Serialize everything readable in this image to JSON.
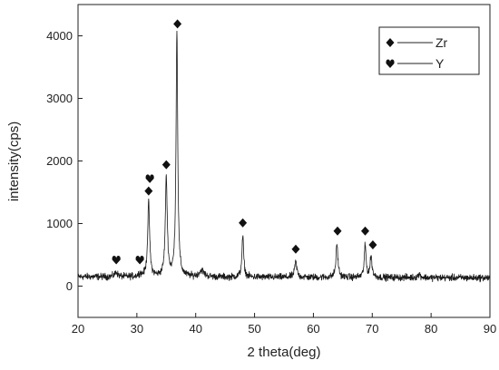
{
  "chart_data": {
    "type": "line",
    "xlabel": "2 theta(deg)",
    "ylabel": "intensity(cps)",
    "xlim": [
      20,
      90
    ],
    "ylim": [
      -500,
      4500
    ],
    "x_ticks": [
      20,
      30,
      40,
      50,
      60,
      70,
      80,
      90
    ],
    "y_ticks": [
      0,
      1000,
      2000,
      3000,
      4000
    ],
    "grid": false,
    "legend_position": "top-right",
    "legend": [
      {
        "marker": "diamond",
        "label": "Zr"
      },
      {
        "marker": "heart",
        "label": "Y"
      }
    ],
    "baseline": 150,
    "noise_amplitude": 70,
    "series": [
      {
        "x": [
          20,
          26.5,
          30.5,
          32.0,
          35.0,
          36.8,
          41.0,
          48.0,
          57.0,
          64.0,
          68.8,
          69.8,
          78.0,
          90
        ],
        "values": [
          180,
          210,
          170,
          1330,
          1720,
          4080,
          230,
          800,
          400,
          680,
          660,
          480,
          200,
          150
        ]
      }
    ],
    "peaks": [
      {
        "x": 26.5,
        "height": 70,
        "width": 0.3
      },
      {
        "x": 30.5,
        "height": 40,
        "width": 0.3
      },
      {
        "x": 32.0,
        "height": 1180,
        "width": 0.2
      },
      {
        "x": 35.0,
        "height": 1570,
        "width": 0.2
      },
      {
        "x": 36.8,
        "height": 3930,
        "width": 0.17
      },
      {
        "x": 41.0,
        "height": 100,
        "width": 0.5
      },
      {
        "x": 48.0,
        "height": 650,
        "width": 0.18
      },
      {
        "x": 57.0,
        "height": 250,
        "width": 0.22
      },
      {
        "x": 64.0,
        "height": 530,
        "width": 0.2
      },
      {
        "x": 68.8,
        "height": 510,
        "width": 0.18
      },
      {
        "x": 69.8,
        "height": 330,
        "width": 0.2
      },
      {
        "x": 78.0,
        "height": 50,
        "width": 0.3
      }
    ],
    "annotations": [
      {
        "marker": "heart",
        "x": 26.5,
        "y": 420
      },
      {
        "marker": "heart",
        "x": 30.5,
        "y": 420
      },
      {
        "marker": "diamond",
        "x": 32.0,
        "y": 1520
      },
      {
        "marker": "heart",
        "x": 32.2,
        "y": 1720
      },
      {
        "marker": "diamond",
        "x": 35.0,
        "y": 1940
      },
      {
        "marker": "diamond",
        "x": 36.9,
        "y": 4190
      },
      {
        "marker": "diamond",
        "x": 48.0,
        "y": 1010
      },
      {
        "marker": "diamond",
        "x": 57.0,
        "y": 590
      },
      {
        "marker": "diamond",
        "x": 64.1,
        "y": 880
      },
      {
        "marker": "diamond",
        "x": 68.8,
        "y": 880
      },
      {
        "marker": "diamond",
        "x": 70.1,
        "y": 660
      }
    ],
    "colors": {
      "line": "#1a1a1a",
      "axis": "#222222"
    }
  }
}
